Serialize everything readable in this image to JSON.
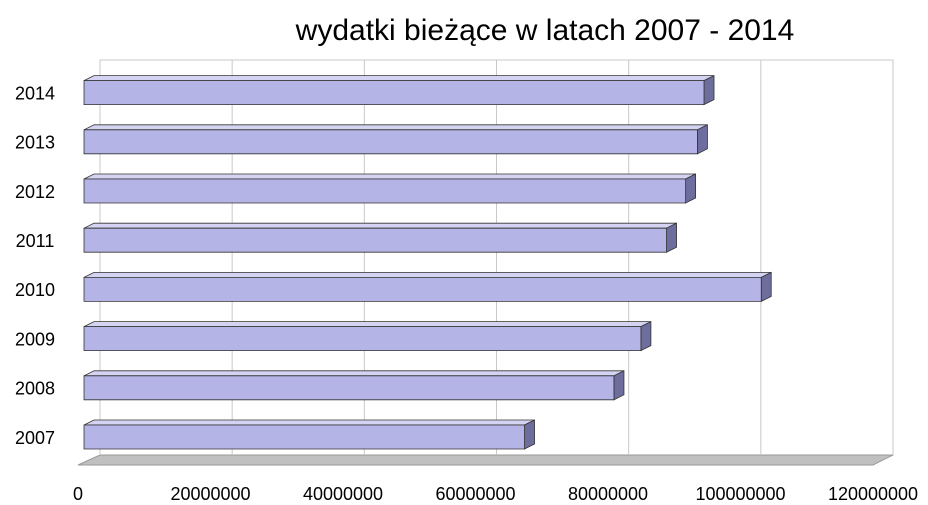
{
  "chart_data": {
    "type": "bar",
    "orientation": "horizontal",
    "title": "wydatki bieżące w latach 2007 - 2014",
    "categories": [
      "2007",
      "2008",
      "2009",
      "2010",
      "2011",
      "2012",
      "2013",
      "2014"
    ],
    "values": [
      67000000,
      80600000,
      84700000,
      103000000,
      88600000,
      91500000,
      93300000,
      94300000
    ],
    "color": "#b4b4e6",
    "xlim": [
      0,
      120000000
    ],
    "xticks": [
      0,
      20000000,
      40000000,
      60000000,
      80000000,
      100000000,
      120000000
    ],
    "grid": true
  }
}
